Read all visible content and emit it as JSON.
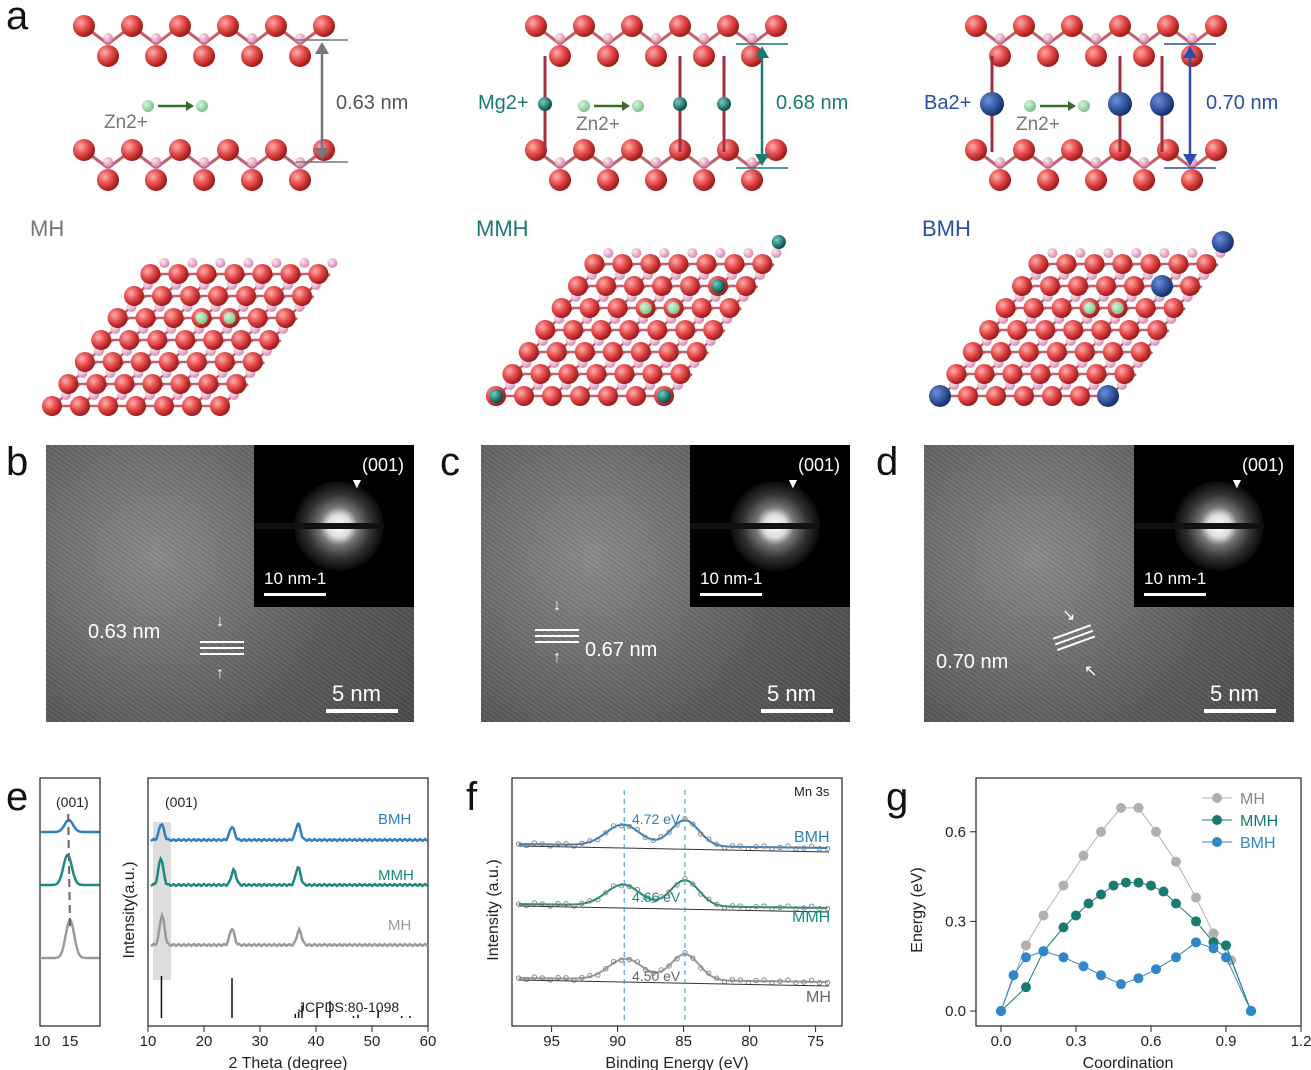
{
  "panel_labels": {
    "a": "a",
    "b": "b",
    "c": "c",
    "d": "d",
    "e": "e",
    "f": "f",
    "g": "g"
  },
  "panel_a": {
    "structures": [
      {
        "name": "MH",
        "spacing": "0.63 nm",
        "ion": "",
        "zn": "Zn2+",
        "color": "#777777"
      },
      {
        "name": "MMH",
        "spacing": "0.68 nm",
        "ion": "Mg2+",
        "zn": "Zn2+",
        "color": "#1a7a72"
      },
      {
        "name": "BMH",
        "spacing": "0.70 nm",
        "ion": "Ba2+",
        "zn": "Zn2+",
        "color": "#2a4ea6"
      }
    ]
  },
  "panel_tem": [
    {
      "spacing": "0.63 nm",
      "plane": "(001)",
      "saed_scale": "10 nm-1",
      "scale": "5 nm"
    },
    {
      "spacing": "0.67 nm",
      "plane": "(001)",
      "saed_scale": "10 nm-1",
      "scale": "5 nm"
    },
    {
      "spacing": "0.70 nm",
      "plane": "(001)",
      "saed_scale": "10 nm-1",
      "scale": "5 nm"
    }
  ],
  "panel_e": {
    "inset_label": "(001)",
    "main_label": "(001)",
    "ylabel": "Intensity(a.u.)",
    "xlabel": "2 Theta (degree)",
    "reference": "JCPDS:80-1098",
    "series_names": [
      "BMH",
      "MMH",
      "MH"
    ]
  },
  "panel_f": {
    "title": "Mn 3s",
    "ylabel": "Intensity (a.u.)",
    "xlabel": "Binding Energy (eV)",
    "splits": [
      "4.72 eV",
      "4.66 eV",
      "4.50 eV"
    ],
    "series_names": [
      "BMH",
      "MMH",
      "MH"
    ]
  },
  "chart_data": [
    {
      "type": "line",
      "panel": "e-inset",
      "x_ticks": [
        10,
        15
      ],
      "xlim": [
        10,
        15
      ],
      "series": [
        {
          "name": "BMH",
          "color": "#2f7fc1",
          "peak_x": 12.4
        },
        {
          "name": "MMH",
          "color": "#1a8a80",
          "peak_x": 12.3
        },
        {
          "name": "MH",
          "color": "#9a9a9a",
          "peak_x": 12.5
        }
      ]
    },
    {
      "type": "line",
      "panel": "e",
      "xlabel": "2 Theta (degree)",
      "ylabel": "Intensity(a.u.)",
      "xlim": [
        10,
        60
      ],
      "x_ticks": [
        10,
        20,
        30,
        40,
        50,
        60
      ],
      "series": [
        {
          "name": "BMH",
          "color": "#2f7fc1",
          "peaks": [
            [
              12.4,
              0.55
            ],
            [
              25.0,
              0.45
            ],
            [
              36.8,
              0.55
            ]
          ]
        },
        {
          "name": "MMH",
          "color": "#1a8a80",
          "peaks": [
            [
              12.3,
              0.9
            ],
            [
              25.3,
              0.5
            ],
            [
              36.8,
              0.6
            ]
          ]
        },
        {
          "name": "MH",
          "color": "#9a9a9a",
          "peaks": [
            [
              12.5,
              1.0
            ],
            [
              25.0,
              0.55
            ],
            [
              37.0,
              0.5
            ]
          ]
        }
      ],
      "reference_lines": [
        [
          12.4,
          1.0
        ],
        [
          25.0,
          0.95
        ],
        [
          36.3,
          0.1
        ],
        [
          36.9,
          0.15
        ],
        [
          37.5,
          0.3
        ],
        [
          40.2,
          0.25
        ],
        [
          42.5,
          0.4
        ],
        [
          46.7,
          0.05
        ],
        [
          47.5,
          0.08
        ],
        [
          51.1,
          0.2
        ],
        [
          55.3,
          0.05
        ],
        [
          56.8,
          0.05
        ]
      ]
    },
    {
      "type": "line",
      "panel": "f",
      "xlabel": "Binding Energy (eV)",
      "ylabel": "Intensity (a.u.)",
      "xlim": [
        98,
        73
      ],
      "x_ticks": [
        95,
        90,
        85,
        80,
        75
      ],
      "series": [
        {
          "name": "BMH",
          "color": "#2f7fc1",
          "peak1": 89.6,
          "peak2": 84.9
        },
        {
          "name": "MMH",
          "color": "#1a8a80",
          "peak1": 89.6,
          "peak2": 84.9
        },
        {
          "name": "MH",
          "color": "#9a9a9a",
          "peak1": 89.4,
          "peak2": 84.9
        }
      ]
    },
    {
      "type": "line",
      "panel": "g",
      "xlabel": "Coordination",
      "ylabel": "Energy (eV)",
      "xlim": [
        -0.1,
        1.2
      ],
      "ylim": [
        -0.05,
        0.78
      ],
      "x_ticks": [
        0.0,
        0.3,
        0.6,
        0.9,
        1.2
      ],
      "y_ticks": [
        0.0,
        0.3,
        0.6
      ],
      "legend_position": "top-right",
      "series": [
        {
          "name": "MH",
          "color": "#b0b0b0",
          "x": [
            0,
            0.1,
            0.17,
            0.25,
            0.33,
            0.4,
            0.48,
            0.55,
            0.62,
            0.7,
            0.78,
            0.85,
            0.92,
            1.0
          ],
          "y": [
            0,
            0.22,
            0.32,
            0.42,
            0.52,
            0.6,
            0.68,
            0.68,
            0.6,
            0.5,
            0.38,
            0.26,
            0.17,
            0
          ]
        },
        {
          "name": "MMH",
          "color": "#1a7a72",
          "x": [
            0,
            0.1,
            0.17,
            0.25,
            0.3,
            0.35,
            0.4,
            0.45,
            0.5,
            0.55,
            0.6,
            0.65,
            0.7,
            0.78,
            0.85,
            0.9,
            1.0
          ],
          "y": [
            0,
            0.08,
            0.2,
            0.28,
            0.32,
            0.36,
            0.39,
            0.42,
            0.43,
            0.43,
            0.42,
            0.4,
            0.36,
            0.3,
            0.23,
            0.22,
            0
          ]
        },
        {
          "name": "BMH",
          "color": "#2f86c8",
          "x": [
            0,
            0.05,
            0.1,
            0.17,
            0.25,
            0.33,
            0.4,
            0.48,
            0.55,
            0.62,
            0.7,
            0.78,
            0.85,
            0.9,
            1.0
          ],
          "y": [
            0,
            0.12,
            0.18,
            0.2,
            0.18,
            0.15,
            0.12,
            0.09,
            0.11,
            0.14,
            0.18,
            0.23,
            0.21,
            0.18,
            0
          ]
        }
      ]
    }
  ]
}
